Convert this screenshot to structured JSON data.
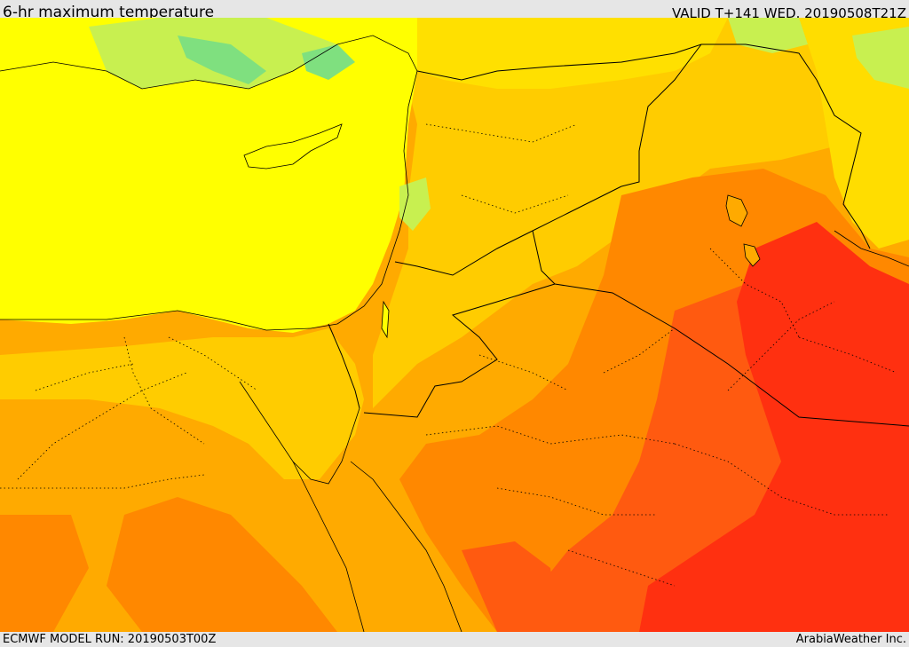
{
  "header": {
    "title": "6-hr maximum temperature",
    "valid": "VALID T+141 WED. 20190508T21Z"
  },
  "footer": {
    "model_run": "ECMWF MODEL RUN: 20190503T00Z",
    "credit": "ArabiaWeather Inc."
  },
  "map": {
    "field": "6-hr maximum temperature",
    "colors": {
      "coolest": "#7fe07f",
      "cool": "#c8f050",
      "mild": "#ffff00",
      "warm": "#ffcc00",
      "hot": "#ffaa00",
      "hotter": "#ff8800",
      "very_hot": "#ff5a10",
      "extreme": "#ff3010",
      "boundary_line": "#000000"
    }
  }
}
